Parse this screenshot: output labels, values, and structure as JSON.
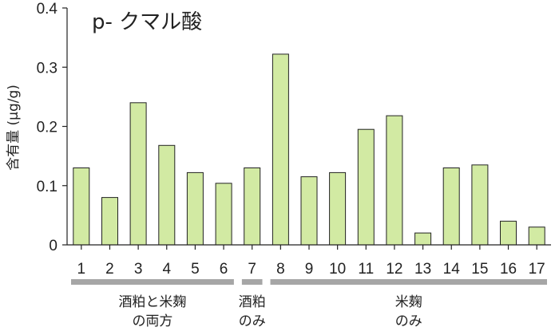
{
  "chart_data": {
    "type": "bar",
    "title": "p- クマル酸",
    "ylabel": "含有量 (μg/g)",
    "xlabel": "",
    "ylim": [
      0,
      0.4
    ],
    "yticks": [
      "0",
      "0.1",
      "0.2",
      "0.3",
      "0.4"
    ],
    "categories": [
      "1",
      "2",
      "3",
      "4",
      "5",
      "6",
      "7",
      "8",
      "9",
      "10",
      "11",
      "12",
      "13",
      "14",
      "15",
      "16",
      "17"
    ],
    "values": [
      0.13,
      0.08,
      0.24,
      0.168,
      0.122,
      0.104,
      0.13,
      0.322,
      0.115,
      0.122,
      0.195,
      0.218,
      0.02,
      0.13,
      0.135,
      0.04,
      0.03
    ],
    "grid": false,
    "bar_color": "#d2eaa3",
    "bar_stroke": "#222222",
    "group_bar_color": "#a6a6a6",
    "groups": [
      {
        "from": 1,
        "to": 6,
        "label_line1": "酒粕と米麹",
        "label_line2": "の両方"
      },
      {
        "from": 7,
        "to": 7,
        "label_line1": "酒粕",
        "label_line2": "のみ"
      },
      {
        "from": 8,
        "to": 17,
        "label_line1": "米麹",
        "label_line2": "のみ"
      }
    ]
  }
}
